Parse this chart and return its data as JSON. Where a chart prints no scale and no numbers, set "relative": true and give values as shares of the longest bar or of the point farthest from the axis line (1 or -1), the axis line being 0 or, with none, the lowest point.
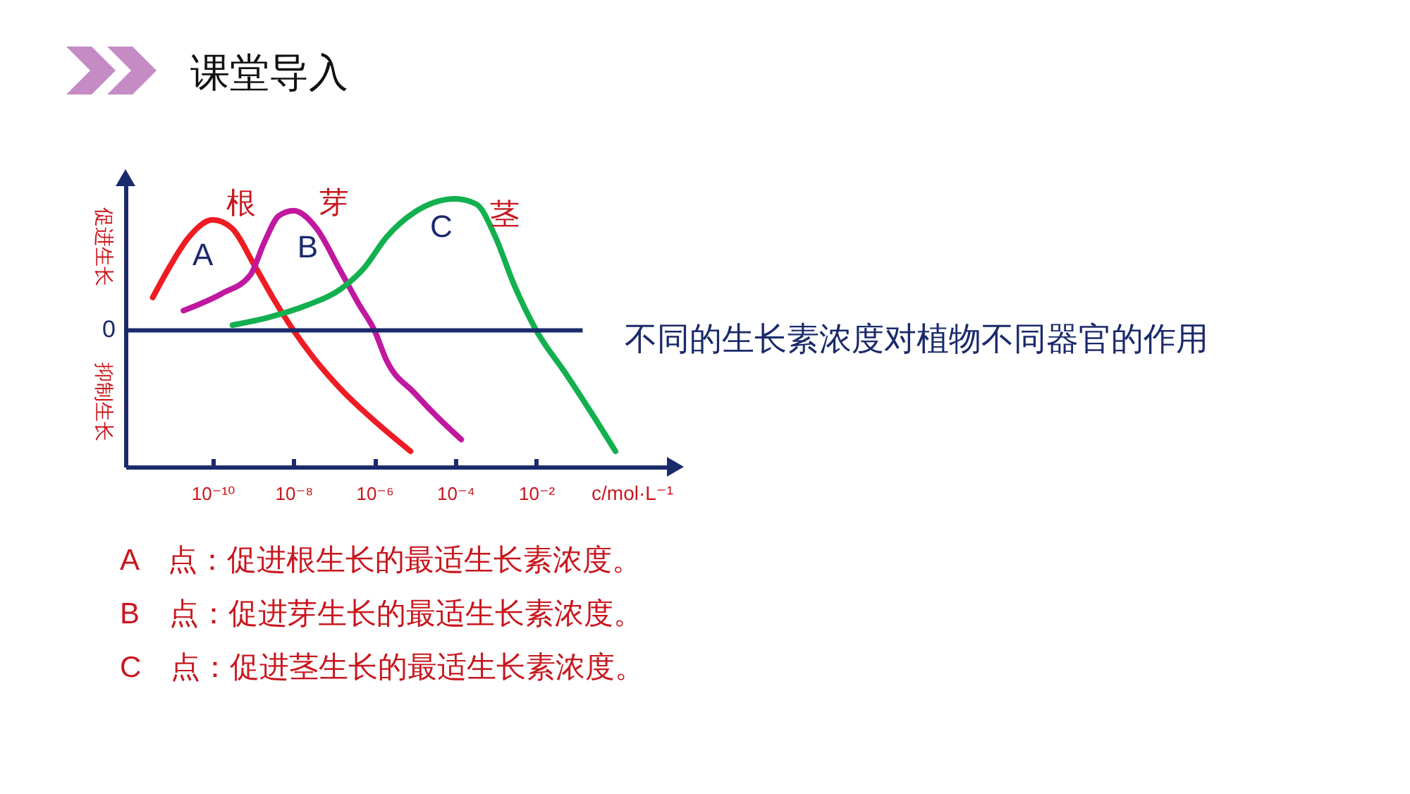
{
  "chart_data": {
    "type": "line",
    "title": "课堂导入",
    "xlabel": "c/mol·L⁻¹",
    "log": "x",
    "relative": true,
    "tick_labels": "x",
    "xlim": [
      7e-13,
      20
    ],
    "xticks": [
      {
        "value": 1e-10,
        "label": "10⁻¹⁰"
      },
      {
        "value": 1e-08,
        "label": "10⁻⁸"
      },
      {
        "value": 1e-06,
        "label": "10⁻⁶"
      },
      {
        "value": 0.0001,
        "label": "10⁻⁴"
      },
      {
        "value": 0.01,
        "label": "10⁻²"
      }
    ],
    "series": [
      {
        "name": "根",
        "color": "#ee1c24",
        "x": [
          3.3e-12,
          8.9e-12,
          2.6e-11,
          1e-10,
          2.9e-10,
          1.1e-09,
          3.2e-09,
          1e-08,
          2.8e-08,
          1.4e-07,
          1.2e-06,
          7.8e-06
        ],
        "values": [
          0.25,
          0.49,
          0.71,
          0.84,
          0.78,
          0.49,
          0.24,
          0,
          -0.19,
          -0.44,
          -0.71,
          -0.92
        ]
      },
      {
        "name": "芽",
        "color": "#c0189e",
        "x": [
          1.9e-11,
          1.7e-10,
          8.5e-10,
          1.9e-09,
          4.3e-09,
          1e-08,
          3.6e-08,
          1.4e-07,
          4.1e-07,
          1e-06,
          2e-06,
          1e-05,
          3.9e-05,
          0.00014
        ],
        "values": [
          0.15,
          0.28,
          0.42,
          0.67,
          0.87,
          0.91,
          0.78,
          0.46,
          0.2,
          0,
          -0.23,
          -0.48,
          -0.67,
          -0.83
        ]
      },
      {
        "name": "茎",
        "color": "#12b04f",
        "x": [
          3.1e-10,
          2.5e-09,
          2.1e-08,
          1.4e-07,
          5.4e-07,
          2e-06,
          1e-05,
          0.0001,
          0.00033,
          0.00098,
          0.0028,
          0.01,
          0.054,
          0.27,
          0.91
        ],
        "values": [
          0.04,
          0.1,
          0.19,
          0.31,
          0.47,
          0.71,
          0.9,
          1,
          0.96,
          0.71,
          0.35,
          0,
          -0.33,
          -0.66,
          -0.92
        ]
      }
    ],
    "ref_lines": [
      {
        "axis": "y",
        "value": 0,
        "label": "0",
        "color": "#1b2a6b"
      }
    ],
    "annotations": [
      "促进生长",
      "抑制生长",
      "不同的生长素浓度对植物不同器官的作用",
      "A　点：促进根生长的最适生长素浓度。",
      "B　点：促进芽生长的最适生长素浓度。",
      "C　点：促进茎生长的最适生长素浓度。",
      {
        "text": "A",
        "x": 1e-10,
        "y": 0.84
      },
      {
        "text": "B",
        "x": 1e-08,
        "y": 0.91
      },
      {
        "text": "C",
        "x": 0.0001,
        "y": 1
      }
    ]
  }
}
